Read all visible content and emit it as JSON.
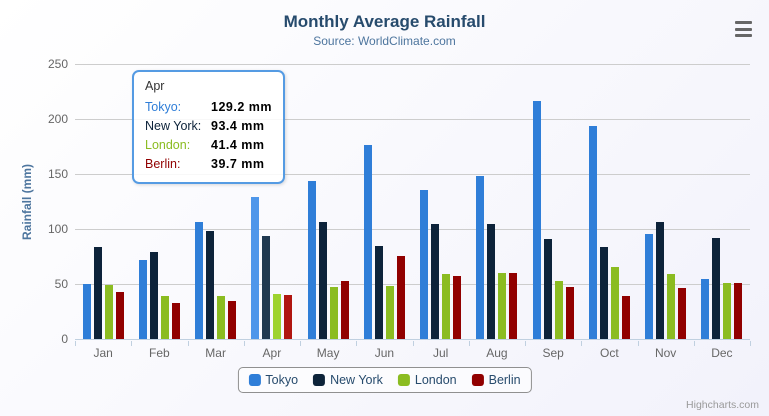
{
  "header": {
    "title": "Monthly Average Rainfall",
    "subtitle": "Source: WorldClimate.com"
  },
  "toolbar": {
    "menu_icon": "hamburger-menu"
  },
  "y_axis": {
    "title": "Rainfall (mm)"
  },
  "chart_data": {
    "type": "bar",
    "title": "Monthly Average Rainfall",
    "subtitle": "Source: WorldClimate.com",
    "xlabel": "",
    "ylabel": "Rainfall (mm)",
    "ylim": [
      0,
      250
    ],
    "y_ticks": [
      0,
      50,
      100,
      150,
      200,
      250
    ],
    "grid": true,
    "legend_position": "bottom",
    "categories": [
      "Jan",
      "Feb",
      "Mar",
      "Apr",
      "May",
      "Jun",
      "Jul",
      "Aug",
      "Sep",
      "Oct",
      "Nov",
      "Dec"
    ],
    "series": [
      {
        "name": "Tokyo",
        "color": "#2f7ed8",
        "values": [
          49.9,
          71.5,
          106.4,
          129.2,
          144.0,
          176.0,
          135.6,
          148.5,
          216.4,
          194.1,
          95.6,
          54.4
        ]
      },
      {
        "name": "New York",
        "color": "#0d233a",
        "values": [
          83.6,
          78.8,
          98.5,
          93.4,
          106.0,
          84.5,
          105.0,
          104.3,
          91.2,
          83.5,
          106.6,
          92.3
        ]
      },
      {
        "name": "London",
        "color": "#8bbc21",
        "values": [
          48.9,
          38.8,
          39.3,
          41.4,
          47.0,
          48.3,
          59.0,
          59.6,
          52.4,
          65.2,
          59.3,
          51.2
        ]
      },
      {
        "name": "Berlin",
        "color": "#910000",
        "values": [
          42.4,
          33.2,
          34.5,
          39.7,
          52.6,
          75.5,
          57.4,
          60.4,
          47.6,
          39.1,
          46.8,
          51.1
        ]
      }
    ],
    "hover_state": {
      "category": "Apr",
      "brightened_colors": [
        "#4e96ea",
        "#203950",
        "#9ed32f",
        "#b01510"
      ]
    }
  },
  "tooltip": {
    "header": "Apr",
    "border_color": "#559be3",
    "rows": [
      {
        "label": "Tokyo:",
        "value": "129.2 mm",
        "color": "#2f7ed8"
      },
      {
        "label": "New York:",
        "value": "93.4 mm",
        "color": "#0d233a"
      },
      {
        "label": "London:",
        "value": "41.4 mm",
        "color": "#8bbc21"
      },
      {
        "label": "Berlin:",
        "value": "39.7 mm",
        "color": "#910000"
      }
    ]
  },
  "legend": {
    "items": [
      {
        "label": "Tokyo",
        "color": "#2f7ed8"
      },
      {
        "label": "New York",
        "color": "#0d233a"
      },
      {
        "label": "London",
        "color": "#8bbc21"
      },
      {
        "label": "Berlin",
        "color": "#910000"
      }
    ]
  },
  "credits": {
    "label": "Highcharts.com"
  }
}
